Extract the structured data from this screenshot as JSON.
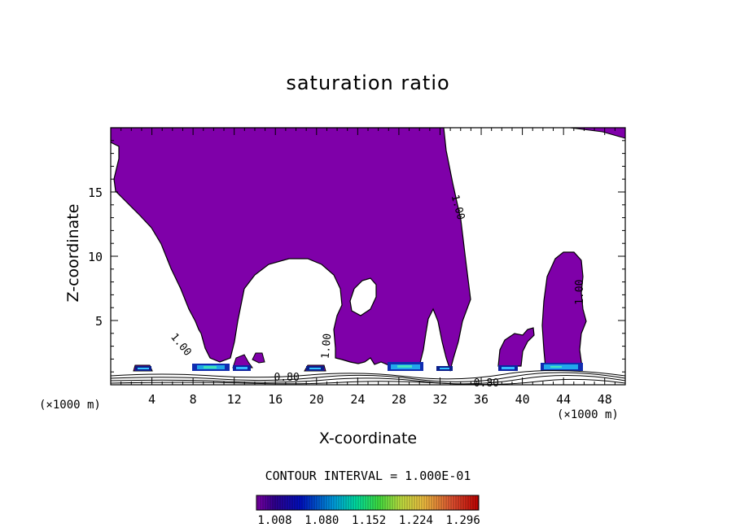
{
  "chart_data": {
    "type": "heatmap",
    "title": "saturation ratio",
    "xlabel": "X-coordinate",
    "ylabel": "Z-coordinate",
    "x_unit_label": "(×1000 m)",
    "xlim": [
      0,
      50
    ],
    "ylim": [
      0,
      20
    ],
    "x_ticks": [
      4,
      8,
      12,
      16,
      20,
      24,
      28,
      32,
      36,
      40,
      44,
      48
    ],
    "y_ticks": [
      5,
      10,
      15
    ],
    "contour_interval_label": "CONTOUR INTERVAL = 1.000E-01",
    "contour_labels": [
      {
        "text": "1.00",
        "x": 33.7,
        "z": 13.8,
        "angle": 75
      },
      {
        "text": "1.00",
        "x": 45.6,
        "z": 7.2,
        "angle": -90
      },
      {
        "text": "1.00",
        "x": 6.8,
        "z": 3.1,
        "angle": 50
      },
      {
        "text": "1.00",
        "x": 21.0,
        "z": 3.0,
        "angle": -85
      },
      {
        "text": "0.80",
        "x": 17.1,
        "z": 0.55,
        "angle": 0
      },
      {
        "text": "0.80",
        "x": 36.5,
        "z": 0.1,
        "angle": 0
      }
    ],
    "colorbar": {
      "tick_labels": [
        "1.008",
        "1.080",
        "1.152",
        "1.224",
        "1.296"
      ],
      "min": 0.98,
      "max": 1.32
    },
    "fill_color": "#7f00a9",
    "series": [
      {
        "name": "saturation ratio > 1.0",
        "regions": "supersaturated (purple) domain with low-level cloud bands"
      }
    ]
  }
}
